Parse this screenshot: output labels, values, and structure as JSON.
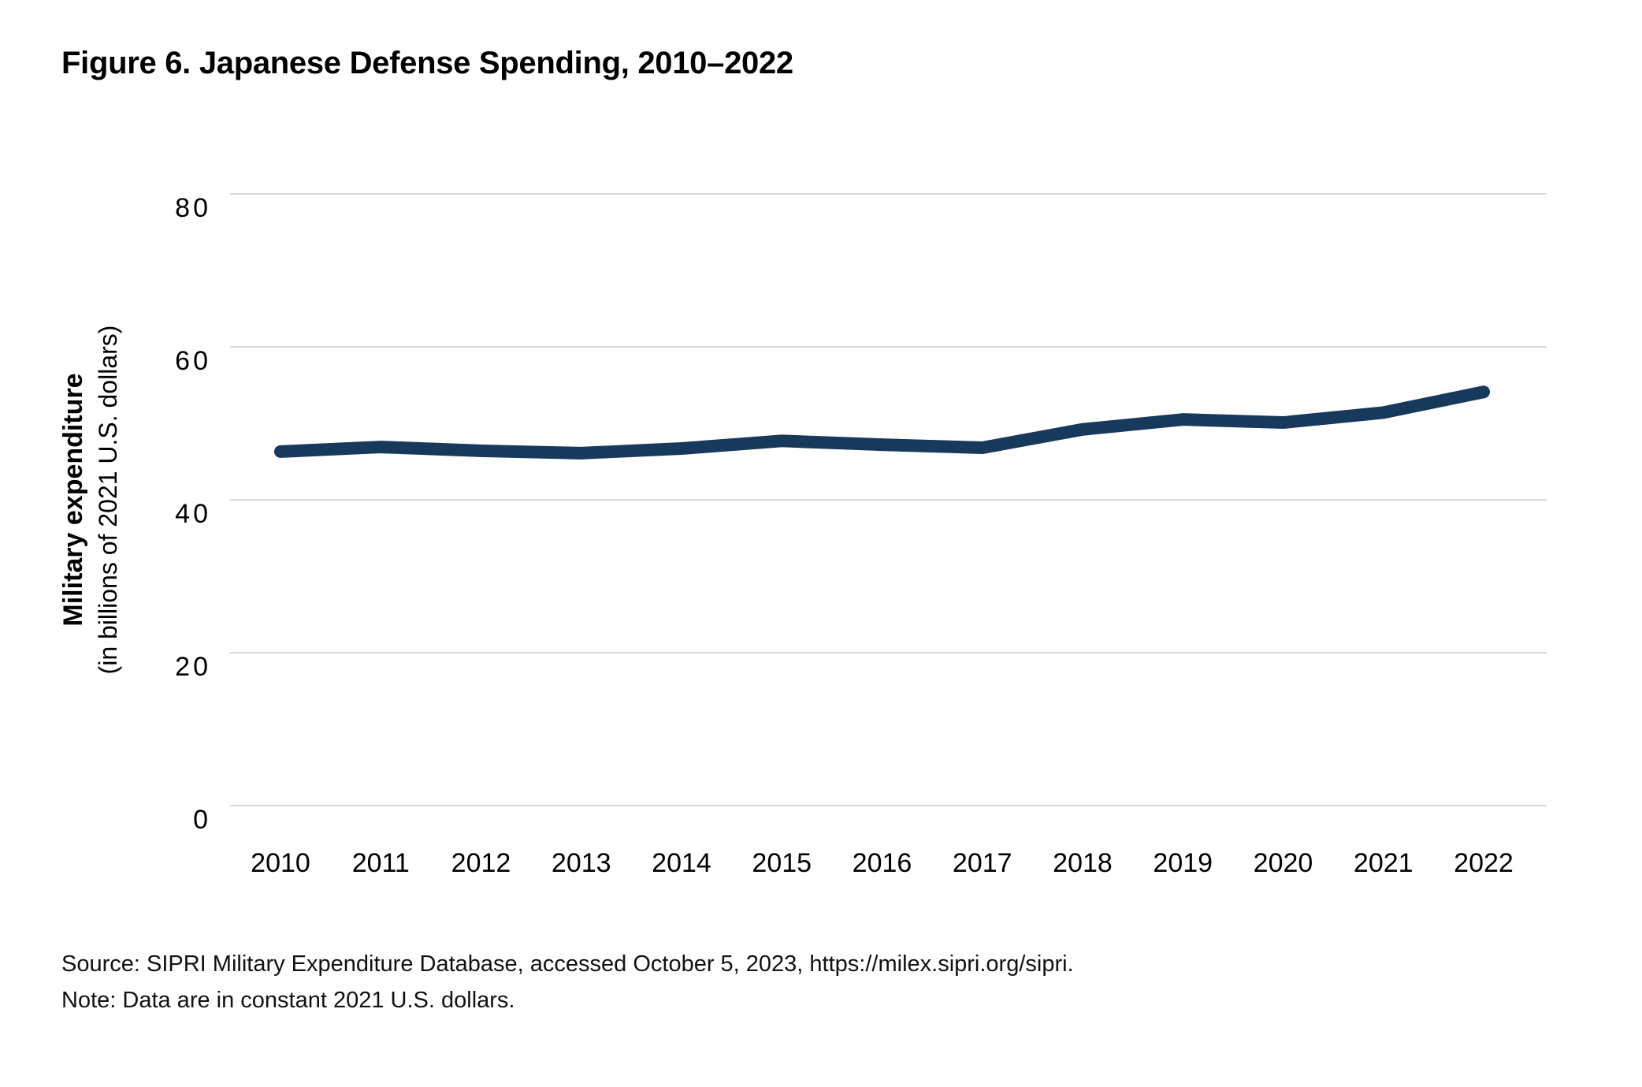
{
  "title": "Figure 6. Japanese Defense Spending, 2010–2022",
  "footer": {
    "source": "Source: SIPRI Military Expenditure Database, accessed October 5, 2023, https://milex.sipri.org/sipri.",
    "note": "Note: Data are in constant 2021 U.S. dollars."
  },
  "chart_data": {
    "type": "line",
    "title": "Figure 6. Japanese Defense Spending, 2010–2022",
    "x": [
      2010,
      2011,
      2012,
      2013,
      2014,
      2015,
      2016,
      2017,
      2018,
      2019,
      2020,
      2021,
      2022
    ],
    "series": [
      {
        "name": "Japanese military expenditure",
        "values": [
          46.3,
          46.9,
          46.4,
          46.1,
          46.7,
          47.7,
          47.2,
          46.8,
          49.2,
          50.5,
          50.1,
          51.4,
          54.1
        ]
      }
    ],
    "ylabel": "Military expenditure",
    "ylabel_sub": "(in billions of 2021 U.S. dollars)",
    "xlabel": "",
    "yticks": [
      0,
      20,
      40,
      60,
      80
    ],
    "ylim": [
      0,
      88
    ],
    "xlim": [
      2010,
      2022
    ],
    "grid": "horizontal",
    "legend": "none",
    "colors": {
      "line": "#17395c",
      "grid": "#d8d8d8",
      "text": "#000000"
    }
  }
}
